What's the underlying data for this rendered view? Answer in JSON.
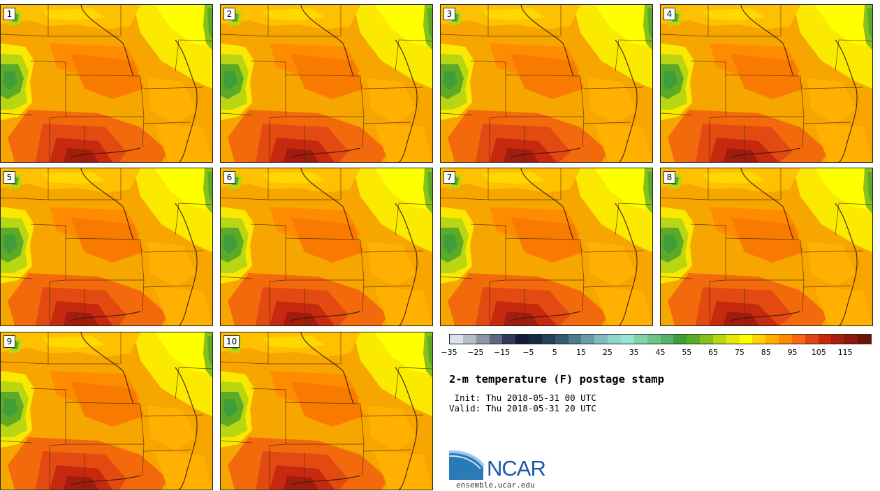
{
  "panels": [
    {
      "label": "1"
    },
    {
      "label": "2"
    },
    {
      "label": "3"
    },
    {
      "label": "4"
    },
    {
      "label": "5"
    },
    {
      "label": "6"
    },
    {
      "label": "7"
    },
    {
      "label": "8"
    },
    {
      "label": "9"
    },
    {
      "label": "10"
    }
  ],
  "colorbar": {
    "colors": [
      "#dde2e9",
      "#b6bcc8",
      "#8d94a5",
      "#5e6680",
      "#2f3a58",
      "#121c36",
      "#172940",
      "#26405a",
      "#355a72",
      "#4e7a8c",
      "#689ca6",
      "#80bcbb",
      "#8fd6c8",
      "#94e6d1",
      "#84d3a6",
      "#6ec486",
      "#54b269",
      "#3f9e3a",
      "#5caa26",
      "#86c01c",
      "#b8d611",
      "#e4e808",
      "#ffff00",
      "#ffd400",
      "#ffae00",
      "#ff8a00",
      "#f76914",
      "#e24515",
      "#c7290f",
      "#a91d0e",
      "#8b170d",
      "#6b1409"
    ],
    "ticks": [
      "−35",
      "−25",
      "−15",
      "−5",
      "5",
      "15",
      "25",
      "35",
      "45",
      "55",
      "65",
      "75",
      "85",
      "95",
      "105",
      "115"
    ]
  },
  "title": "2-m temperature (F) postage stamp",
  "init": " Init: Thu 2018-05-31 00 UTC",
  "valid": "Valid: Thu 2018-05-31 20 UTC",
  "logo_text": "NCAR",
  "url": "ensemble.ucar.edu"
}
